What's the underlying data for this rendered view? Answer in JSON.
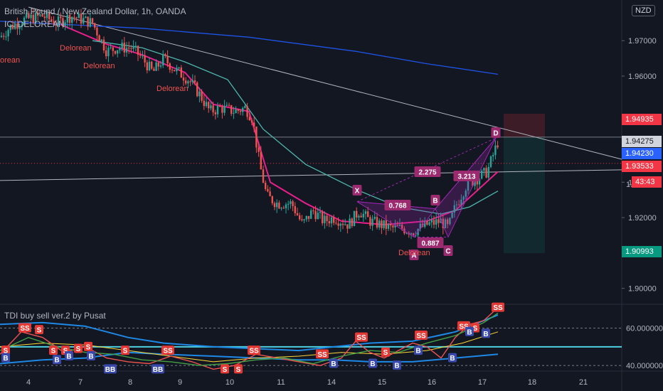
{
  "header": {
    "symbol_title": "British Pound / New Zealand Dollar, 1h, OANDA",
    "indicator_main": "IC: DELOREAN",
    "indicator_sub": "TDI buy sell ver.2 by Pusat",
    "currency": "NZD"
  },
  "colors": {
    "background": "#131722",
    "up_candle": "#26a69a",
    "down_candle": "#ef5350",
    "harmonic": "#9c27b0",
    "ema_pink": "#e91e8c",
    "ema_teal": "#4db6ac",
    "ema_blue": "#1e53e5",
    "tdi_cyan": "#4dd0e1"
  },
  "price_tags": [
    {
      "value": "1.94935",
      "bg": "#f23645"
    },
    {
      "value": "1.94275",
      "bg": "#d1d4dc",
      "fg": "#131722"
    },
    {
      "value": "1.94230",
      "bg": "#2962ff"
    },
    {
      "value": "1.93533",
      "bg": "#f23645"
    },
    {
      "value": "43:43",
      "bg": "#f23645"
    },
    {
      "value": "1.90993",
      "bg": "#089981"
    }
  ],
  "harmonic_labels": {
    "X": "X",
    "A": "A",
    "B": "B",
    "C": "C",
    "D": "D",
    "r1": "0.768",
    "r2": "0.887",
    "r3": "2.275",
    "r4": "3.213"
  },
  "delorean_labels": [
    "Delorean",
    "Delorean",
    "Delorean",
    "Delorean",
    "Delorean"
  ],
  "truncated_labels": {
    "left_edge": "orean",
    "partial_price": "1."
  },
  "signal_labels": {
    "sell": "S",
    "sell_double": "SS",
    "buy": "B",
    "buy_double": "BB"
  },
  "chart_data": {
    "type": "candlestick",
    "title": "British Pound / New Zealand Dollar, 1h, OANDA",
    "y_axis": {
      "ticks": [
        "1.97000",
        "1.96000",
        "1.93000",
        "1.92000",
        "1.90000"
      ],
      "ylim": [
        1.8955,
        1.9815
      ]
    },
    "x_axis": {
      "ticks": [
        "4",
        "7",
        "8",
        "9",
        "10",
        "11",
        "14",
        "15",
        "16",
        "17",
        "18",
        "21"
      ]
    },
    "price_path": [
      [
        0,
        1.971
      ],
      [
        15,
        1.974
      ],
      [
        35,
        1.976
      ],
      [
        60,
        1.977
      ],
      [
        80,
        1.975
      ],
      [
        100,
        1.977
      ],
      [
        130,
        1.975
      ],
      [
        140,
        1.971
      ],
      [
        150,
        1.967
      ],
      [
        165,
        1.968
      ],
      [
        185,
        1.968
      ],
      [
        200,
        1.965
      ],
      [
        215,
        1.961
      ],
      [
        230,
        1.965
      ],
      [
        245,
        1.962
      ],
      [
        265,
        1.959
      ],
      [
        280,
        1.955
      ],
      [
        295,
        1.95
      ],
      [
        310,
        1.951
      ],
      [
        330,
        1.95
      ],
      [
        345,
        1.951
      ],
      [
        355,
        1.948
      ],
      [
        365,
        1.935
      ],
      [
        375,
        1.926
      ],
      [
        390,
        1.924
      ],
      [
        410,
        1.924
      ],
      [
        425,
        1.918
      ],
      [
        440,
        1.922
      ],
      [
        455,
        1.919
      ],
      [
        470,
        1.92
      ],
      [
        490,
        1.918
      ],
      [
        505,
        1.922
      ],
      [
        520,
        1.919
      ],
      [
        535,
        1.918
      ],
      [
        550,
        1.917
      ],
      [
        565,
        1.917
      ],
      [
        580,
        1.916
      ],
      [
        600,
        1.918
      ],
      [
        620,
        1.919
      ],
      [
        630,
        1.917
      ],
      [
        640,
        1.923
      ],
      [
        655,
        1.929
      ],
      [
        670,
        1.931
      ],
      [
        685,
        1.933
      ],
      [
        700,
        1.9415
      ]
    ],
    "moving_averages": [
      {
        "name": "EMA pink",
        "points": [
          [
            80,
            1.975
          ],
          [
            150,
            1.969
          ],
          [
            200,
            1.966
          ],
          [
            260,
            1.961
          ],
          [
            300,
            1.952
          ],
          [
            350,
            1.95
          ],
          [
            380,
            1.93
          ],
          [
            430,
            1.924
          ],
          [
            480,
            1.919
          ],
          [
            540,
            1.918
          ],
          [
            600,
            1.919
          ],
          [
            640,
            1.922
          ],
          [
            700,
            1.933
          ]
        ]
      },
      {
        "name": "EMA teal",
        "points": [
          [
            130,
            1.97
          ],
          [
            200,
            1.968
          ],
          [
            260,
            1.964
          ],
          [
            320,
            1.959
          ],
          [
            370,
            1.945
          ],
          [
            430,
            1.935
          ],
          [
            500,
            1.928
          ],
          [
            560,
            1.923
          ],
          [
            620,
            1.921
          ],
          [
            660,
            1.923
          ],
          [
            700,
            1.9275
          ]
        ]
      },
      {
        "name": "EMA blue",
        "points": [
          [
            0,
            1.9755
          ],
          [
            200,
            1.9735
          ],
          [
            350,
            1.971
          ],
          [
            500,
            1.967
          ],
          [
            600,
            1.9635
          ],
          [
            700,
            1.9605
          ]
        ]
      }
    ],
    "trendlines": [
      {
        "from": [
          40,
          1.9795
        ],
        "to": [
          874,
          1.9365
        ]
      },
      {
        "from": [
          0,
          1.9305
        ],
        "to": [
          874,
          1.9335
        ]
      }
    ],
    "harmonic_pattern": {
      "X": [
        502,
        1.9245
      ],
      "A": [
        582,
        1.9145
      ],
      "B": [
        612,
        1.9225
      ],
      "C": [
        630,
        1.9145
      ],
      "D": [
        697,
        1.9425
      ],
      "ratios": {
        "XB": 0.768,
        "AC": 0.887,
        "BD": 2.275,
        "XD": 3.213
      }
    },
    "position_box": {
      "entry": 1.94275,
      "stop": 1.94935,
      "target": 1.90993
    },
    "tdi": {
      "levels": [
        60,
        40
      ],
      "level_labels": [
        "60.000000",
        "40.000000"
      ],
      "mid_line": 50,
      "ylim": [
        37,
        72
      ]
    }
  }
}
